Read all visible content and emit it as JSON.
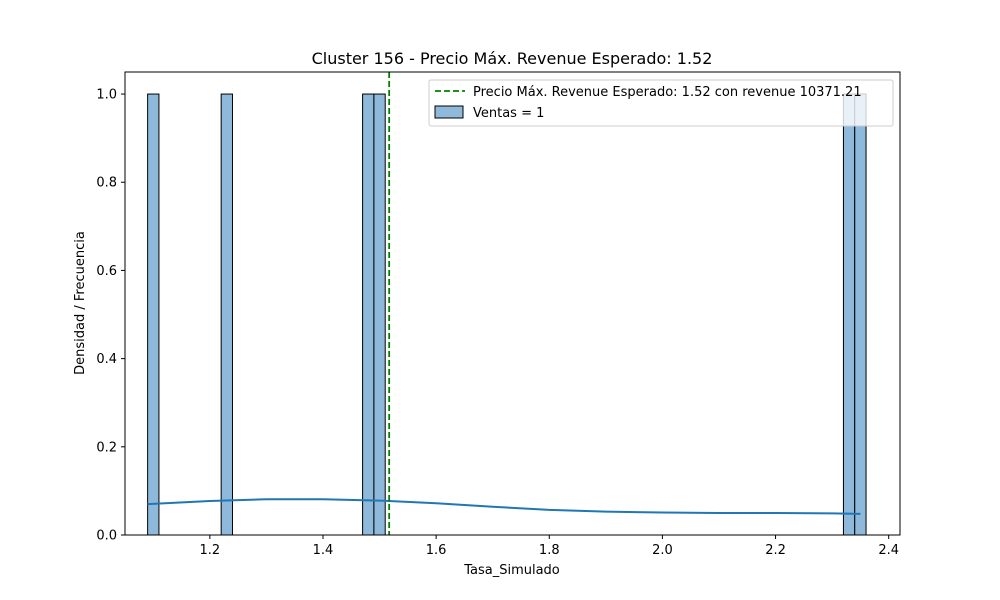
{
  "chart_data": {
    "type": "histogram",
    "title": "Cluster 156 - Precio Máx. Revenue Esperado: 1.52",
    "xlabel": "Tasa_Simulado",
    "ylabel": "Densidad / Frecuencia",
    "xlim": [
      1.05,
      2.42
    ],
    "ylim": [
      0,
      1.05
    ],
    "x_ticks": [
      1.2,
      1.4,
      1.6,
      1.8,
      2.0,
      2.2,
      2.4
    ],
    "x_tick_labels": [
      "1.2",
      "1.4",
      "1.6",
      "1.8",
      "2.0",
      "2.2",
      "2.4"
    ],
    "y_ticks": [
      0.0,
      0.2,
      0.4,
      0.6,
      0.8,
      1.0
    ],
    "y_tick_labels": [
      "0.0",
      "0.2",
      "0.4",
      "0.6",
      "0.8",
      "1.0"
    ],
    "grid": false,
    "legend_position": "top-right",
    "bars": {
      "name": "Ventas = 1",
      "color": "#8fb9da",
      "edge_color": "#000000",
      "bin_width": 0.02,
      "bins": [
        {
          "x0": 1.09,
          "x1": 1.11,
          "value": 1
        },
        {
          "x0": 1.22,
          "x1": 1.24,
          "value": 1
        },
        {
          "x0": 1.47,
          "x1": 1.49,
          "value": 1
        },
        {
          "x0": 1.49,
          "x1": 1.51,
          "value": 1
        },
        {
          "x0": 2.32,
          "x1": 2.34,
          "value": 1
        },
        {
          "x0": 2.34,
          "x1": 2.36,
          "value": 1
        }
      ]
    },
    "kde": {
      "color": "#1f77b4",
      "x": [
        1.09,
        1.2,
        1.3,
        1.4,
        1.5,
        1.6,
        1.7,
        1.8,
        1.9,
        2.0,
        2.1,
        2.2,
        2.3,
        2.35
      ],
      "y": [
        0.07,
        0.077,
        0.081,
        0.081,
        0.078,
        0.072,
        0.064,
        0.057,
        0.053,
        0.051,
        0.05,
        0.05,
        0.049,
        0.048
      ]
    },
    "vline": {
      "x": 1.517,
      "color": "#008000",
      "style": "dashed",
      "label": "Precio Máx. Revenue Esperado: 1.52 con revenue 10371.21"
    }
  }
}
